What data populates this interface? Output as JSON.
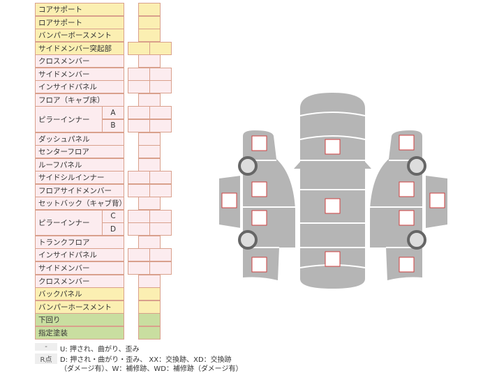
{
  "rows": [
    {
      "label": "コアサポート",
      "type": "s",
      "color": "y"
    },
    {
      "label": "ロアサポート",
      "type": "s",
      "color": "y"
    },
    {
      "label": "バンパーボースメント",
      "type": "s",
      "color": "y"
    },
    {
      "label": "サイドメンバー突起部",
      "type": "d",
      "color": "y"
    },
    {
      "label": "クロスメンバー",
      "type": "s",
      "color": "p"
    },
    {
      "label": "サイドメンバー",
      "type": "d",
      "color": "p"
    },
    {
      "label": "インサイドパネル",
      "type": "d",
      "color": "p"
    },
    {
      "label": "フロア（キャブ床）",
      "type": "s",
      "color": "p"
    },
    {
      "label": "ピラーインナー",
      "sub": "A",
      "type": "d",
      "color": "p"
    },
    {
      "label": "",
      "sub": "B",
      "type": "d",
      "color": "p"
    },
    {
      "label": "ダッシュパネル",
      "type": "s",
      "color": "p"
    },
    {
      "label": "センターフロア",
      "type": "s",
      "color": "p"
    },
    {
      "label": "ルーフパネル",
      "type": "s",
      "color": "p"
    },
    {
      "label": "サイドシルインナー",
      "type": "d",
      "color": "p"
    },
    {
      "label": "フロアサイドメンバー",
      "type": "d",
      "color": "p"
    },
    {
      "label": "セットバック（キャブ背）",
      "type": "s",
      "color": "p"
    },
    {
      "label": "ピラーインナー",
      "sub": "C",
      "type": "d",
      "color": "p"
    },
    {
      "label": "",
      "sub": "D",
      "type": "d",
      "color": "p"
    },
    {
      "label": "トランクフロア",
      "type": "s",
      "color": "p"
    },
    {
      "label": "インサイドパネル",
      "type": "d",
      "color": "p"
    },
    {
      "label": "サイドメンバー",
      "type": "d",
      "color": "p"
    },
    {
      "label": "クロスメンバー",
      "type": "s",
      "color": "p"
    },
    {
      "label": "バックパネル",
      "type": "s",
      "color": "y"
    },
    {
      "label": "バンパーホースメント",
      "type": "s",
      "color": "y"
    },
    {
      "label": "下回り",
      "type": "s",
      "color": "g"
    },
    {
      "label": "指定塗装",
      "type": "s",
      "color": "g"
    }
  ],
  "legend": {
    "key1": "-",
    "text1": "U: 押され、曲がり、歪み",
    "key2": "R点",
    "text2": "D: 押され・曲がり・歪み、 XX：交換跡、XD：交換跡",
    "text3": "（ダメージ有）、W：補修跡、WD：補修跡（ダメージ有）"
  },
  "colors": {
    "yellow": "#fbefb2",
    "pink": "#fcecef",
    "green": "#c9dea0",
    "border": "#d9a08c",
    "car": "#b5b5b5",
    "mark": "#d04040"
  }
}
